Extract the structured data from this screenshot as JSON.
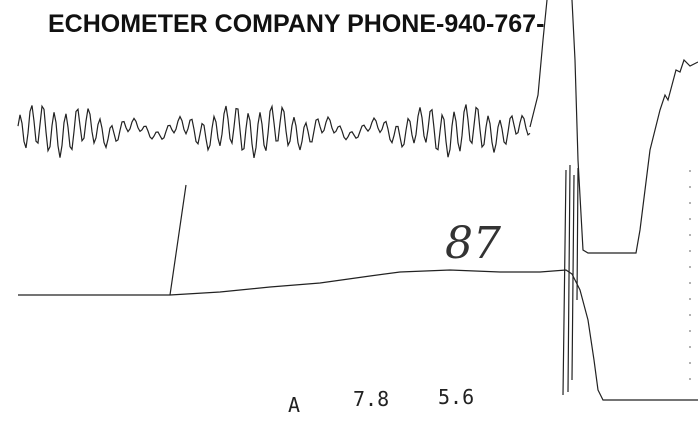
{
  "header": {
    "title": "ECHOMETER COMPANY PHONE-940-767-"
  },
  "annotation": "87",
  "readout": [
    "A",
    "7.8",
    "5.6"
  ]
}
